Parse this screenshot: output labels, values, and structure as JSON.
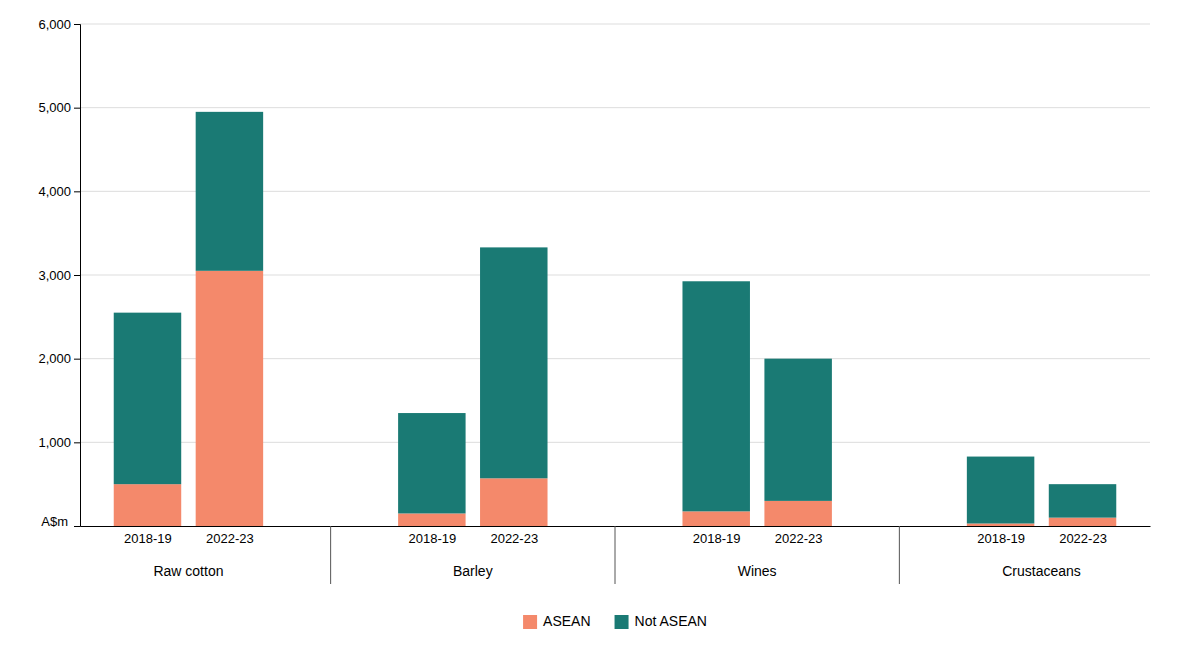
{
  "chart_data": {
    "type": "bar",
    "stacked": true,
    "categories": [
      "2018-19",
      "2022-23",
      "2018-19",
      "2022-23",
      "2018-19",
      "2022-23",
      "2018-19",
      "2022-23"
    ],
    "groups": [
      "Raw cotton",
      "Barley",
      "Wines",
      "Crustaceans"
    ],
    "series": [
      {
        "name": "ASEAN",
        "color": "#F4896B",
        "values": [
          500,
          3050,
          150,
          570,
          175,
          300,
          30,
          100
        ]
      },
      {
        "name": "Not ASEAN",
        "color": "#1A7A74",
        "values": [
          2050,
          1900,
          1200,
          2760,
          2750,
          1700,
          800,
          400
        ]
      }
    ],
    "ylabel": "A$m",
    "ylim": [
      0,
      6000
    ],
    "yticks": [
      {
        "value": 1000,
        "label": "1,000"
      },
      {
        "value": 2000,
        "label": "2,000"
      },
      {
        "value": 3000,
        "label": "3,000"
      },
      {
        "value": 4000,
        "label": "4,000"
      },
      {
        "value": 5000,
        "label": "5,000"
      },
      {
        "value": 6000,
        "label": "6,000"
      }
    ],
    "grid": true,
    "legend": "bottom"
  }
}
